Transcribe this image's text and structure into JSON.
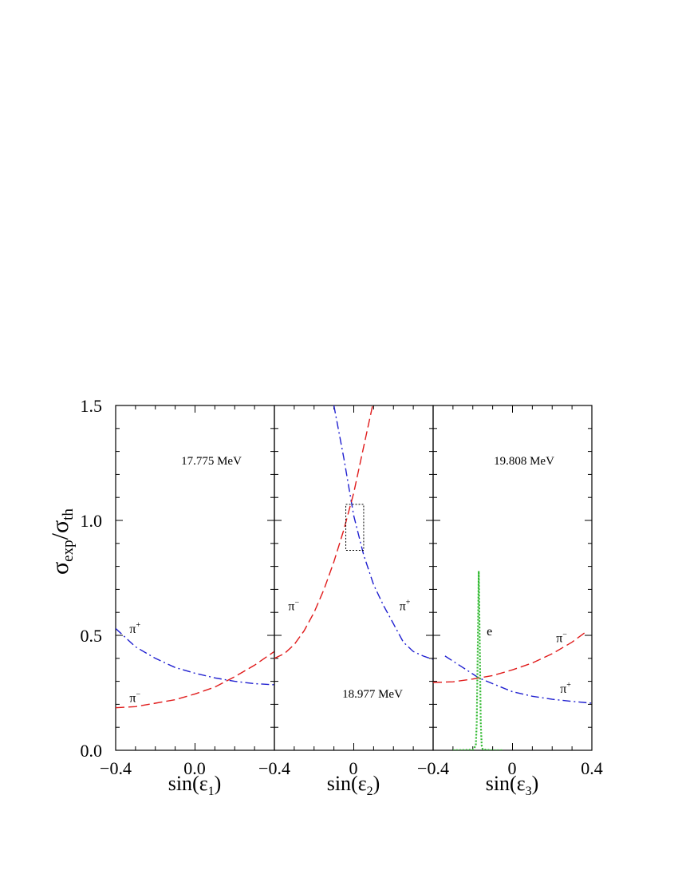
{
  "chart_data": {
    "type": "line",
    "ylabel": {
      "main": "σ",
      "sub1": "exp",
      "slash": "/σ",
      "sub2": "th"
    },
    "ylim": [
      0,
      1.5
    ],
    "y_tick_labels": [
      "0.0",
      "0.5",
      "1.0",
      "1.5"
    ],
    "x_tick_labels_shared": [
      "−0.4",
      "0.0",
      "−0.4",
      "0",
      "−0.4",
      "0",
      "0.4"
    ],
    "colors": {
      "pi_plus": "#1f1fd0",
      "pi_minus": "#e01a1a",
      "e": "#2db82d",
      "frame": "#000000"
    },
    "panels": [
      {
        "id": "panel-1",
        "xlabel": {
          "main": "sin(ε",
          "sub": "1",
          "close": ")"
        },
        "xlim": [
          -0.4,
          0.4
        ],
        "energy_label": "17.775 MeV",
        "series": [
          {
            "name": "π+",
            "color": "#1f1fd0",
            "dash": "dashdot",
            "x": [
              -0.4,
              -0.3,
              -0.2,
              -0.1,
              0.0,
              0.1,
              0.2,
              0.3,
              0.4
            ],
            "y": [
              0.53,
              0.45,
              0.4,
              0.36,
              0.335,
              0.315,
              0.3,
              0.29,
              0.285
            ]
          },
          {
            "name": "π−",
            "color": "#e01a1a",
            "dash": "dashed",
            "x": [
              -0.4,
              -0.3,
              -0.2,
              -0.1,
              0.0,
              0.1,
              0.2,
              0.3,
              0.4
            ],
            "y": [
              0.185,
              0.19,
              0.205,
              0.22,
              0.245,
              0.275,
              0.32,
              0.37,
              0.43
            ]
          }
        ],
        "curve_labels": [
          {
            "text": "π",
            "sup": "+",
            "at": [
              -0.33,
              0.51
            ]
          },
          {
            "text": "π",
            "sup": "−",
            "at": [
              -0.33,
              0.21
            ]
          }
        ]
      },
      {
        "id": "panel-2",
        "xlabel": {
          "main": "sin(ε",
          "sub": "2",
          "close": ")"
        },
        "xlim": [
          -0.4,
          0.4
        ],
        "energy_label": "18.977 MeV",
        "series": [
          {
            "name": "π+",
            "color": "#1f1fd0",
            "dash": "dashdot",
            "x": [
              -0.1,
              -0.05,
              0.0,
              0.05,
              0.1,
              0.15,
              0.2,
              0.25,
              0.3,
              0.35,
              0.4
            ],
            "y": [
              1.5,
              1.27,
              1.02,
              0.85,
              0.72,
              0.63,
              0.55,
              0.47,
              0.43,
              0.41,
              0.395
            ]
          },
          {
            "name": "π−",
            "color": "#e01a1a",
            "dash": "dashed",
            "x": [
              -0.4,
              -0.35,
              -0.3,
              -0.25,
              -0.2,
              -0.15,
              -0.1,
              -0.05,
              0.0,
              0.05,
              0.1
            ],
            "y": [
              0.4,
              0.42,
              0.46,
              0.52,
              0.6,
              0.7,
              0.82,
              0.96,
              1.12,
              1.32,
              1.52
            ]
          }
        ],
        "curve_labels": [
          {
            "text": "π",
            "sup": "−",
            "at": [
              -0.33,
              0.61
            ]
          },
          {
            "text": "π",
            "sup": "+",
            "at": [
              0.23,
              0.61
            ]
          }
        ],
        "inset_box": {
          "x": [
            -0.04,
            0.05
          ],
          "y": [
            0.87,
            1.07
          ]
        }
      },
      {
        "id": "panel-3",
        "xlabel": {
          "main": "sin(ε",
          "sub": "3",
          "close": ")"
        },
        "xlim": [
          -0.4,
          0.4
        ],
        "energy_label": "19.808 MeV",
        "series": [
          {
            "name": "π+",
            "color": "#1f1fd0",
            "dash": "dashdot",
            "x": [
              -0.34,
              -0.25,
              -0.17,
              -0.1,
              0.0,
              0.1,
              0.2,
              0.3,
              0.4
            ],
            "y": [
              0.41,
              0.36,
              0.315,
              0.29,
              0.255,
              0.235,
              0.222,
              0.213,
              0.205
            ]
          },
          {
            "name": "π−",
            "color": "#e01a1a",
            "dash": "dashed",
            "x": [
              -0.4,
              -0.3,
              -0.2,
              -0.1,
              0.0,
              0.1,
              0.2,
              0.3,
              0.37
            ],
            "y": [
              0.295,
              0.298,
              0.31,
              0.325,
              0.35,
              0.38,
              0.42,
              0.47,
              0.515
            ]
          },
          {
            "name": "e",
            "color": "#2db82d",
            "dash": "dotted",
            "x": [
              -0.3,
              -0.2,
              -0.185,
              -0.18,
              -0.175,
              -0.17,
              -0.165,
              -0.16,
              -0.155,
              -0.15,
              -0.13,
              -0.1,
              -0.05
            ],
            "y": [
              0.0,
              0.002,
              0.02,
              0.12,
              0.45,
              0.78,
              0.45,
              0.12,
              0.02,
              0.004,
              0.002,
              0.0,
              0.0
            ]
          }
        ],
        "curve_labels": [
          {
            "text": "e",
            "sup": "",
            "at": [
              -0.13,
              0.5
            ]
          },
          {
            "text": "π",
            "sup": "−",
            "at": [
              0.22,
              0.47
            ]
          },
          {
            "text": "π",
            "sup": "+",
            "at": [
              0.24,
              0.25
            ]
          }
        ]
      }
    ]
  }
}
